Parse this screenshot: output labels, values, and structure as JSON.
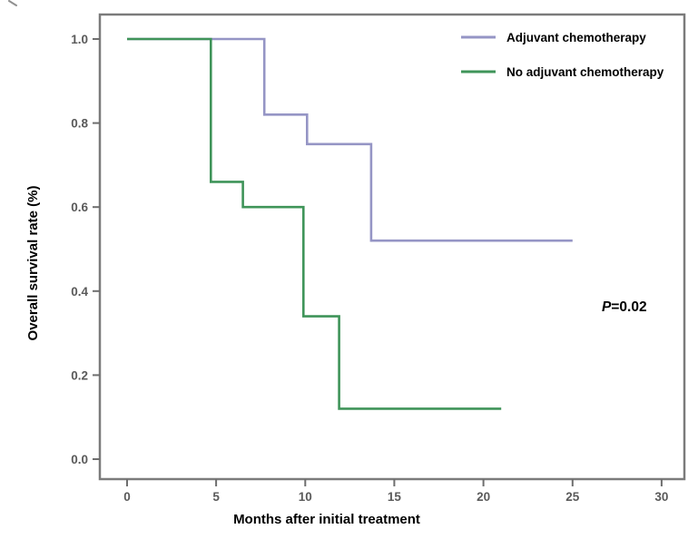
{
  "figure": {
    "background": "#ffffff",
    "border_color": "#7b7b7b",
    "tick_color": "#6e6e6e",
    "tick_label_color": "#5a5a5a"
  },
  "chart_data": {
    "type": "line",
    "subtype": "kaplan-meier-step-survival",
    "title": "",
    "xlabel": "Months after initial treatment",
    "ylabel": "Overall survival rate (%)",
    "xlim": [
      -1.5,
      31.5
    ],
    "ylim": [
      -0.05,
      1.06
    ],
    "xticks": [
      0,
      5,
      10,
      15,
      20,
      25,
      30
    ],
    "yticks": [
      "0.0",
      "0.2",
      "0.4",
      "0.6",
      "0.8",
      "1.0"
    ],
    "grid": false,
    "legend_position": "top-right-inside",
    "series": [
      {
        "name": "Adjuvant chemotherapy",
        "color": "#9595c5",
        "points": [
          [
            0,
            1.0
          ],
          [
            7.7,
            1.0
          ],
          [
            7.7,
            0.82
          ],
          [
            10.1,
            0.82
          ],
          [
            10.1,
            0.75
          ],
          [
            13.7,
            0.75
          ],
          [
            13.7,
            0.52
          ],
          [
            25,
            0.52
          ]
        ]
      },
      {
        "name": "No adjuvant chemotherapy",
        "color": "#3f9459",
        "points": [
          [
            0,
            1.0
          ],
          [
            4.7,
            1.0
          ],
          [
            4.7,
            0.66
          ],
          [
            6.5,
            0.66
          ],
          [
            6.5,
            0.6
          ],
          [
            9.9,
            0.6
          ],
          [
            9.9,
            0.34
          ],
          [
            11.9,
            0.34
          ],
          [
            11.9,
            0.12
          ],
          [
            21,
            0.12
          ]
        ]
      }
    ],
    "annotation": {
      "p_symbol": "P",
      "p_value": "=0.02"
    }
  }
}
